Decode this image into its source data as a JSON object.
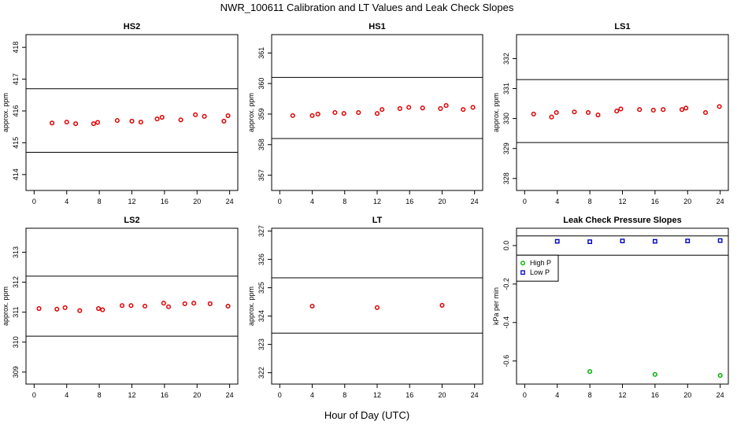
{
  "figure": {
    "title": "NWR_100611  Calibration and LT Values and Leak Check Slopes",
    "xlabel": "Hour of Day (UTC)"
  },
  "colors": {
    "cal_points": "#e00000",
    "high_p": "#00b000",
    "low_p": "#0000cc",
    "lines": "#000000"
  },
  "chart_data": [
    {
      "type": "scatter",
      "title": "HS2",
      "ylabel": "approx. ppm",
      "xlim": [
        -1,
        25
      ],
      "ylim": [
        413.5,
        418.4
      ],
      "xticks": [
        0,
        4,
        8,
        12,
        16,
        20,
        24
      ],
      "yticks": [
        414,
        415,
        416,
        417,
        418
      ],
      "hlines": [
        414.7,
        416.7
      ],
      "series": [
        {
          "x": [
            2.2,
            4.0,
            5.1,
            7.3,
            7.8,
            10.2,
            12.0,
            13.1,
            15.1,
            15.7,
            18.0,
            19.8,
            20.9,
            23.3,
            23.8
          ],
          "y": [
            415.62,
            415.65,
            415.6,
            415.6,
            415.64,
            415.7,
            415.68,
            415.65,
            415.75,
            415.8,
            415.72,
            415.88,
            415.83,
            415.68,
            415.85
          ]
        }
      ]
    },
    {
      "type": "scatter",
      "title": "HS1",
      "ylabel": "approx. ppm",
      "xlim": [
        -1,
        25
      ],
      "ylim": [
        356.5,
        361.6
      ],
      "xticks": [
        0,
        4,
        8,
        12,
        16,
        20,
        24
      ],
      "yticks": [
        357,
        358,
        359,
        360,
        361
      ],
      "hlines": [
        358.2,
        360.2
      ],
      "series": [
        {
          "x": [
            1.6,
            4.0,
            4.7,
            6.8,
            7.9,
            9.7,
            12.0,
            12.6,
            14.8,
            15.9,
            17.6,
            19.8,
            20.5,
            22.6,
            23.8
          ],
          "y": [
            358.95,
            358.95,
            359.0,
            359.05,
            359.02,
            359.05,
            359.02,
            359.15,
            359.18,
            359.22,
            359.2,
            359.18,
            359.28,
            359.15,
            359.22
          ]
        }
      ]
    },
    {
      "type": "scatter",
      "title": "LS1",
      "ylabel": "approx. ppm",
      "xlim": [
        -1,
        25
      ],
      "ylim": [
        327.6,
        332.8
      ],
      "xticks": [
        0,
        4,
        8,
        12,
        16,
        20,
        24
      ],
      "yticks": [
        328,
        329,
        330,
        331,
        332
      ],
      "hlines": [
        329.2,
        331.3
      ],
      "series": [
        {
          "x": [
            1.1,
            3.3,
            3.9,
            6.1,
            7.8,
            9.0,
            11.3,
            11.8,
            14.1,
            15.8,
            17.0,
            19.3,
            19.8,
            22.2,
            23.9
          ],
          "y": [
            330.15,
            330.05,
            330.2,
            330.22,
            330.2,
            330.12,
            330.25,
            330.32,
            330.3,
            330.28,
            330.3,
            330.3,
            330.35,
            330.2,
            330.4
          ]
        }
      ]
    },
    {
      "type": "scatter",
      "title": "LS2",
      "ylabel": "approx. ppm",
      "xlim": [
        -1,
        25
      ],
      "ylim": [
        308.6,
        313.8
      ],
      "xticks": [
        0,
        4,
        8,
        12,
        16,
        20,
        24
      ],
      "yticks": [
        309,
        310,
        311,
        312,
        313
      ],
      "hlines": [
        310.2,
        312.2
      ],
      "series": [
        {
          "x": [
            0.6,
            2.8,
            3.8,
            5.6,
            7.9,
            8.4,
            10.8,
            11.9,
            13.6,
            15.9,
            16.5,
            18.5,
            19.6,
            21.6,
            23.8
          ],
          "y": [
            311.12,
            311.1,
            311.15,
            311.05,
            311.12,
            311.08,
            311.22,
            311.22,
            311.2,
            311.3,
            311.18,
            311.28,
            311.3,
            311.28,
            311.2
          ]
        }
      ]
    },
    {
      "type": "scatter",
      "title": "LT",
      "ylabel": "approx. ppm",
      "xlim": [
        -1,
        25
      ],
      "ylim": [
        321.6,
        327.1
      ],
      "xticks": [
        0,
        4,
        8,
        12,
        16,
        20,
        24
      ],
      "yticks": [
        322,
        323,
        324,
        325,
        326,
        327
      ],
      "hlines": [
        323.4,
        325.35
      ],
      "series": [
        {
          "x": [
            4.0,
            12.0,
            20.0
          ],
          "y": [
            324.35,
            324.3,
            324.38
          ]
        }
      ]
    },
    {
      "type": "scatter",
      "title": "Leak Check Pressure Slopes",
      "ylabel": "kPa per min",
      "xlim": [
        -1,
        25
      ],
      "ylim": [
        -0.72,
        0.09
      ],
      "xticks": [
        0,
        4,
        8,
        12,
        16,
        20,
        24
      ],
      "yticks": [
        -0.6,
        -0.4,
        -0.2,
        0.0
      ],
      "yticklabels": [
        "-0.6",
        "-0.4",
        "-0.2",
        "0.0"
      ],
      "hlines": [
        0.05,
        -0.05
      ],
      "legend": {
        "position": "top-left",
        "entries": [
          "High P",
          "Low P"
        ]
      },
      "series": [
        {
          "name": "High P",
          "x": [
            8,
            16,
            24
          ],
          "y": [
            -0.655,
            -0.67,
            -0.675
          ]
        },
        {
          "name": "Low P",
          "x": [
            4,
            8,
            12,
            16,
            20,
            24
          ],
          "y": [
            0.022,
            0.02,
            0.024,
            0.022,
            0.024,
            0.026
          ]
        }
      ]
    }
  ]
}
